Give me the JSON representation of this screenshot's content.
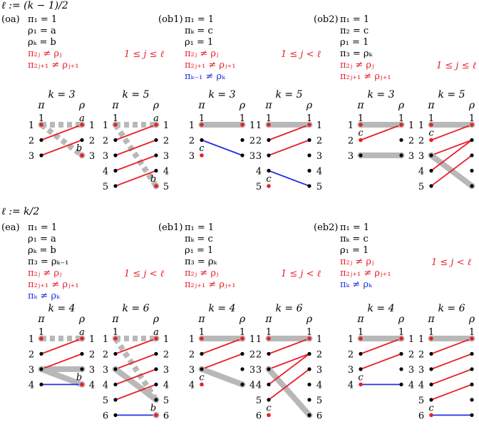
{
  "odd_header": "ℓ := (k − 1)/2",
  "even_header": "ℓ := k/2",
  "colors": {
    "red": "#e8202a",
    "blue": "#2030e0",
    "gray": "#b8b8b8",
    "black": "#000000"
  },
  "panels": [
    {
      "id": "oa",
      "tag": "(oa)",
      "lines": [
        {
          "t": "π₁ = 1",
          "c": "black"
        },
        {
          "t": "ρ₁ = a",
          "c": "black"
        },
        {
          "t": "ρₖ = b",
          "c": "black"
        },
        {
          "t": "π₂ⱼ ≠ ρⱼ",
          "c": "red"
        },
        {
          "t": "π₂ⱼ₊₁ ≠ ρⱼ₊₁",
          "c": "red"
        }
      ],
      "range": "1 ≤ j ≤ ℓ"
    },
    {
      "id": "ob1",
      "tag": "(ob1)",
      "lines": [
        {
          "t": "π₁ = 1",
          "c": "black"
        },
        {
          "t": "πₖ = c",
          "c": "black"
        },
        {
          "t": "ρ₁ = 1",
          "c": "black"
        },
        {
          "t": "π₂ⱼ ≠ ρⱼ",
          "c": "red"
        },
        {
          "t": "π₂ⱼ₊₁ ≠ ρⱼ₊₁",
          "c": "red"
        },
        {
          "t": "πₖ₋₁ ≠ ρₖ",
          "c": "blue"
        }
      ],
      "range": "1 ≤ j < ℓ"
    },
    {
      "id": "ob2",
      "tag": "(ob2)",
      "lines": [
        {
          "t": "π₁ = 1",
          "c": "black"
        },
        {
          "t": "π₂ = c",
          "c": "black"
        },
        {
          "t": "ρ₁ = 1",
          "c": "black"
        },
        {
          "t": "π₃ = ρₖ",
          "c": "black"
        },
        {
          "t": "π₂ⱼ ≠ ρⱼ",
          "c": "red"
        },
        {
          "t": "π₂ⱼ₊₁ ≠ ρⱼ₊₁",
          "c": "red"
        }
      ],
      "range": "1 ≤ j ≤ ℓ"
    },
    {
      "id": "ea",
      "tag": "(ea)",
      "lines": [
        {
          "t": "π₁ = 1",
          "c": "black"
        },
        {
          "t": "ρ₁ = a",
          "c": "black"
        },
        {
          "t": "ρₖ = b",
          "c": "black"
        },
        {
          "t": "π₃ = ρₖ₋₁",
          "c": "black"
        },
        {
          "t": "π₂ⱼ ≠ ρⱼ",
          "c": "red"
        },
        {
          "t": "π₂ⱼ₊₁ ≠ ρⱼ₊₁",
          "c": "red"
        },
        {
          "t": "πₖ ≠ ρₖ",
          "c": "blue"
        }
      ],
      "range": "1 ≤ j < ℓ"
    },
    {
      "id": "eb1",
      "tag": "(eb1)",
      "lines": [
        {
          "t": "π₁ = 1",
          "c": "black"
        },
        {
          "t": "πₖ = c",
          "c": "black"
        },
        {
          "t": "ρ₁ = 1",
          "c": "black"
        },
        {
          "t": "π₃ = ρₖ",
          "c": "black"
        },
        {
          "t": "π₂ⱼ ≠ ρⱼ",
          "c": "red"
        },
        {
          "t": "π₂ⱼ₊₁ ≠ ρⱼ₊₁",
          "c": "red"
        }
      ],
      "range": "1 ≤ j < ℓ"
    },
    {
      "id": "eb2",
      "tag": "(eb2)",
      "lines": [
        {
          "t": "π₁ = 1",
          "c": "black"
        },
        {
          "t": "πₖ = c",
          "c": "black"
        },
        {
          "t": "ρ₁ = 1",
          "c": "black"
        },
        {
          "t": "π₂ⱼ ≠ ρⱼ",
          "c": "red"
        },
        {
          "t": "π₂ⱼ₊₁ ≠ ρⱼ₊₁",
          "c": "red"
        },
        {
          "t": "πₖ ≠ ρₖ",
          "c": "blue"
        }
      ],
      "range": "1 ≤ j < ℓ"
    }
  ],
  "axis_labels": {
    "pi": "π",
    "rho": "ρ"
  },
  "diagrams": [
    {
      "title": "k = 3",
      "k": 3,
      "gray": [
        [
          1,
          1
        ],
        [
          1,
          3
        ]
      ],
      "gray_style": [
        "dashed",
        "dashed"
      ],
      "red": [
        [
          2,
          1
        ],
        [
          3,
          2
        ]
      ],
      "blue": [],
      "red_dots_left": [
        1
      ],
      "red_dots_right": [
        1,
        3
      ],
      "ring_left": [],
      "ring_right": [],
      "top_label_left": "1",
      "top_label_right": "a",
      "bottom_label_right": "b",
      "c_left": null
    },
    {
      "title": "k = 5",
      "k": 5,
      "gray": [
        [
          1,
          1
        ],
        [
          1,
          5
        ]
      ],
      "gray_style": [
        "dashed",
        "dashed"
      ],
      "red": [
        [
          2,
          1
        ],
        [
          3,
          2
        ],
        [
          4,
          3
        ],
        [
          5,
          4
        ]
      ],
      "blue": [],
      "red_dots_left": [
        1
      ],
      "red_dots_right": [
        1,
        5
      ],
      "ring_left": [],
      "ring_right": [],
      "top_label_left": "1",
      "top_label_right": "a",
      "bottom_label_right": "b",
      "c_left": null
    },
    {
      "title": "k = 3",
      "k": 3,
      "gray": [
        [
          1,
          1
        ]
      ],
      "gray_style": [
        "solid"
      ],
      "red": [],
      "blue": [
        [
          2,
          3
        ]
      ],
      "red_dots_left": [
        1,
        3
      ],
      "red_dots_right": [
        1
      ],
      "ring_left": [],
      "ring_right": [],
      "top_label_left": "1",
      "top_label_right": "1",
      "bottom_label_right": null,
      "c_left": 3
    },
    {
      "title": "k = 5",
      "k": 5,
      "gray": [
        [
          1,
          1
        ]
      ],
      "gray_style": [
        "solid"
      ],
      "red": [
        [
          2,
          1
        ],
        [
          3,
          2
        ]
      ],
      "blue": [
        [
          4,
          5
        ]
      ],
      "red_dots_left": [
        1,
        5
      ],
      "red_dots_right": [
        1
      ],
      "ring_left": [],
      "ring_right": [],
      "top_label_left": "1",
      "top_label_right": "1",
      "bottom_label_right": null,
      "c_left": 5
    },
    {
      "title": "k = 3",
      "k": 3,
      "gray": [
        [
          1,
          1
        ],
        [
          3,
          3
        ]
      ],
      "gray_style": [
        "solid",
        "solid"
      ],
      "red": [
        [
          2,
          1
        ]
      ],
      "blue": [],
      "red_dots_left": [
        1,
        2
      ],
      "red_dots_right": [
        1
      ],
      "ring_left": [
        3
      ],
      "ring_right": [
        3
      ],
      "top_label_left": "1",
      "top_label_right": "1",
      "bottom_label_right": null,
      "c_left": 2
    },
    {
      "title": "k = 5",
      "k": 5,
      "gray": [
        [
          1,
          1
        ],
        [
          3,
          5
        ]
      ],
      "gray_style": [
        "solid",
        "solid"
      ],
      "red": [
        [
          2,
          1
        ],
        [
          3,
          2
        ],
        [
          4,
          2
        ],
        [
          5,
          3
        ]
      ],
      "blue": [],
      "red_dots_left": [
        1,
        2
      ],
      "red_dots_right": [
        1
      ],
      "ring_left": [
        3
      ],
      "ring_right": [
        5
      ],
      "top_label_left": "1",
      "top_label_right": "1",
      "bottom_label_right": null,
      "c_left": 2
    },
    {
      "title": "k = 4",
      "k": 4,
      "gray": [
        [
          1,
          1
        ],
        [
          3,
          3
        ],
        [
          3,
          4
        ]
      ],
      "gray_style": [
        "dashed",
        "solid",
        "solid"
      ],
      "red": [
        [
          2,
          1
        ],
        [
          3,
          2
        ]
      ],
      "blue": [
        [
          4,
          4
        ]
      ],
      "red_dots_left": [
        1
      ],
      "red_dots_right": [
        1,
        4
      ],
      "ring_left": [
        3
      ],
      "ring_right": [
        3
      ],
      "top_label_left": "1",
      "top_label_right": "a",
      "bottom_label_right": "b",
      "c_left": null
    },
    {
      "title": "k = 6",
      "k": 6,
      "gray": [
        [
          1,
          1
        ],
        [
          1,
          5
        ],
        [
          3,
          5
        ]
      ],
      "gray_style": [
        "dashed",
        "dashed",
        "solid"
      ],
      "red": [
        [
          2,
          1
        ],
        [
          3,
          2
        ],
        [
          4,
          3
        ],
        [
          5,
          4
        ]
      ],
      "blue": [
        [
          6,
          6
        ]
      ],
      "red_dots_left": [
        1
      ],
      "red_dots_right": [
        1,
        6
      ],
      "ring_left": [
        3
      ],
      "ring_right": [
        5
      ],
      "top_label_left": "1",
      "top_label_right": "a",
      "bottom_label_right": "b",
      "c_left": null
    },
    {
      "title": "k = 4",
      "k": 4,
      "gray": [
        [
          1,
          1
        ],
        [
          3,
          4
        ]
      ],
      "gray_style": [
        "solid",
        "solid"
      ],
      "red": [
        [
          2,
          1
        ],
        [
          3,
          2
        ]
      ],
      "blue": [],
      "red_dots_left": [
        1,
        4
      ],
      "red_dots_right": [
        1
      ],
      "ring_left": [
        3
      ],
      "ring_right": [
        4
      ],
      "top_label_left": "1",
      "top_label_right": "1",
      "bottom_label_right": null,
      "c_left": 4
    },
    {
      "title": "k = 6",
      "k": 6,
      "gray": [
        [
          1,
          1
        ],
        [
          3,
          6
        ]
      ],
      "gray_style": [
        "solid",
        "solid"
      ],
      "red": [
        [
          2,
          1
        ],
        [
          3,
          2
        ],
        [
          4,
          2
        ],
        [
          5,
          3
        ]
      ],
      "blue": [],
      "red_dots_left": [
        1,
        6
      ],
      "red_dots_right": [
        1
      ],
      "ring_left": [
        3
      ],
      "ring_right": [
        6
      ],
      "top_label_left": "1",
      "top_label_right": "1",
      "bottom_label_right": null,
      "c_left": 6
    },
    {
      "title": "k = 4",
      "k": 4,
      "gray": [
        [
          1,
          1
        ]
      ],
      "gray_style": [
        "solid"
      ],
      "red": [
        [
          2,
          1
        ],
        [
          3,
          2
        ]
      ],
      "blue": [
        [
          4,
          4
        ]
      ],
      "red_dots_left": [
        1,
        4
      ],
      "red_dots_right": [
        1
      ],
      "ring_left": [],
      "ring_right": [],
      "top_label_left": "1",
      "top_label_right": "1",
      "bottom_label_right": null,
      "c_left": 4
    },
    {
      "title": "k = 6",
      "k": 6,
      "gray": [
        [
          1,
          1
        ]
      ],
      "gray_style": [
        "solid"
      ],
      "red": [
        [
          2,
          1
        ],
        [
          3,
          2
        ],
        [
          4,
          3
        ],
        [
          5,
          4
        ]
      ],
      "blue": [
        [
          6,
          6
        ]
      ],
      "red_dots_left": [
        1,
        6
      ],
      "red_dots_right": [
        1
      ],
      "ring_left": [],
      "ring_right": [],
      "top_label_left": "1",
      "top_label_right": "1",
      "bottom_label_right": null,
      "c_left": 6
    }
  ]
}
